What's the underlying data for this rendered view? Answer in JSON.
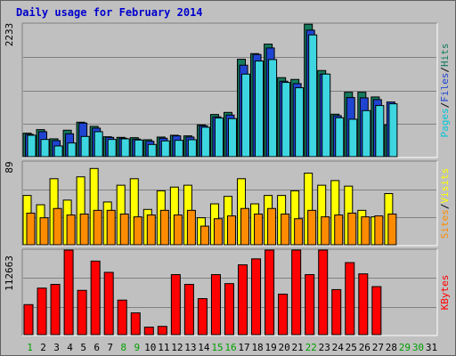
{
  "chart_data": {
    "type": "bar",
    "title": "Daily usage for February 2014",
    "colors": {
      "hits": "#3dd6e0",
      "files": "#1f44d2",
      "pages": "#157a5e",
      "visits": "#ffff00",
      "sites": "#ff8c00",
      "kbytes": "#ff0000",
      "weekend_day_label": "#00a000",
      "weekday_label": "#000000",
      "title": "#0000cc"
    },
    "categories": [
      "1",
      "2",
      "3",
      "4",
      "5",
      "6",
      "7",
      "8",
      "9",
      "10",
      "11",
      "12",
      "13",
      "14",
      "15",
      "16",
      "17",
      "18",
      "19",
      "20",
      "21",
      "22",
      "23",
      "24",
      "25",
      "26",
      "27",
      "28",
      "29",
      "30",
      "31"
    ],
    "weekend_days": [
      "1",
      "8",
      "9",
      "15",
      "16",
      "22",
      "29",
      "30"
    ],
    "panels": [
      {
        "id": "hits",
        "ymax_label": "2233",
        "ymax": 2233,
        "legend": [
          "Pages",
          "/",
          "Files",
          "/",
          "Hits"
        ],
        "legend_colors": [
          "#00c8d8",
          "#000000",
          "#1f44d2",
          "#000000",
          "#157a5e"
        ],
        "series": [
          {
            "name": "Pages",
            "values": [
              395,
              455,
              300,
              445,
              580,
              510,
              335,
              325,
              320,
              285,
              330,
              360,
              350,
              535,
              710,
              745,
              1640,
              1735,
              1895,
              1330,
              1300,
              2230,
              1450,
              715,
              1085,
              1085,
              1005,
              535,
              0,
              0,
              0
            ]
          },
          {
            "name": "Files",
            "values": [
              375,
              420,
              270,
              385,
              565,
              480,
              325,
              310,
              295,
              260,
              310,
              350,
              330,
              520,
              670,
              700,
              1540,
              1720,
              1830,
              1270,
              1230,
              2130,
              1390,
              690,
              995,
              990,
              960,
              920,
              0,
              0,
              0
            ]
          },
          {
            "name": "Hits",
            "values": [
              360,
              290,
              180,
              230,
              340,
              420,
              290,
              300,
              280,
              205,
              265,
              275,
              285,
              495,
              650,
              640,
              1390,
              1610,
              1635,
              1250,
              1160,
              2050,
              1390,
              655,
              630,
              775,
              860,
              890,
              0,
              0,
              0
            ]
          }
        ]
      },
      {
        "id": "visits",
        "ymax_label": "89",
        "ymax": 89,
        "legend": [
          "Sites",
          "/",
          "Visits"
        ],
        "legend_colors": [
          "#ff8c00",
          "#000000",
          "#ffff00"
        ],
        "series": [
          {
            "name": "Visits",
            "values": [
              53,
              43,
              71,
              48,
              73,
              82,
              46,
              64,
              71,
              38,
              58,
              62,
              64,
              29,
              44,
              52,
              71,
              44,
              53,
              53,
              58,
              77,
              64,
              69,
              63,
              37,
              30,
              55,
              0,
              0,
              0
            ]
          },
          {
            "name": "Sites",
            "values": [
              34,
              29,
              39,
              32,
              33,
              37,
              37,
              33,
              30,
              32,
              37,
              32,
              37,
              20,
              28,
              31,
              39,
              33,
              39,
              33,
              28,
              37,
              30,
              32,
              34,
              30,
              31,
              33,
              0,
              0,
              0
            ]
          }
        ]
      },
      {
        "id": "kbytes",
        "ymax_label": "112663",
        "ymax": 112663,
        "legend": [
          "KBytes"
        ],
        "legend_colors": [
          "#ff0000"
        ],
        "series": [
          {
            "name": "KBytes",
            "values": [
              40000,
              62000,
              67000,
              112663,
              59000,
              98000,
              83000,
              46000,
              29000,
              10000,
              11000,
              80000,
              67000,
              48000,
              80000,
              68000,
              93000,
              101000,
              112663,
              54000,
              112663,
              80000,
              112663,
              60000,
              96000,
              81000,
              64000,
              0,
              0,
              0,
              0
            ]
          }
        ]
      }
    ]
  }
}
